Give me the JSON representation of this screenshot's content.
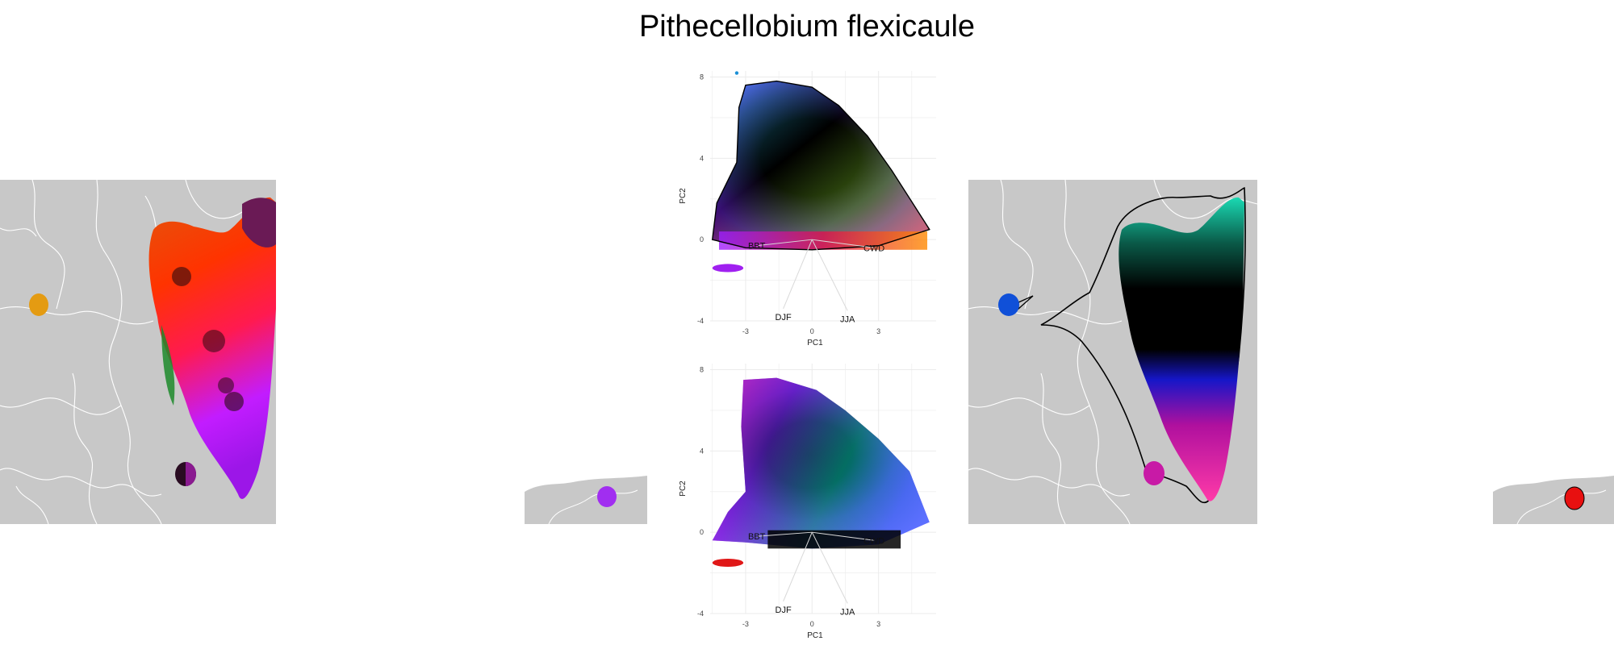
{
  "title": "Pithecellobium flexicaule",
  "colors": {
    "land": "#c8c8c8",
    "borders": "#ffffff",
    "grid": "#ebebeb",
    "outline": "#000000",
    "vector": "#d9d9d9"
  },
  "chart_data": [
    {
      "id": "pca-envelope",
      "type": "scatter",
      "title": "",
      "xlabel": "PC1",
      "ylabel": "PC2",
      "xlim": [
        -4.6,
        5.6
      ],
      "ylim": [
        -4,
        8.3
      ],
      "xticks": [
        -3,
        0,
        3
      ],
      "yticks": [
        -4,
        0,
        4,
        8
      ],
      "grid": true,
      "envelope": [
        [
          -3.4,
          3.8
        ],
        [
          -3.3,
          6.5
        ],
        [
          -3.0,
          7.6
        ],
        [
          -1.6,
          7.8
        ],
        [
          0,
          7.5
        ],
        [
          1.2,
          6.6
        ],
        [
          2.5,
          5.1
        ],
        [
          3.6,
          3.4
        ],
        [
          5.3,
          0.5
        ],
        [
          3.0,
          -0.3
        ],
        [
          0,
          -0.5
        ],
        [
          -3.0,
          -0.4
        ],
        [
          -4.5,
          0
        ],
        [
          -4.3,
          1.8
        ]
      ],
      "outlier_blob": {
        "x": -3.8,
        "y": -1.4,
        "rx": 0.7,
        "ry": 0.2
      },
      "outlier_point": {
        "x": -3.4,
        "y": 8.2
      },
      "vectors": [
        {
          "label": "BBT",
          "x": -2.5,
          "y": -0.3
        },
        {
          "label": "CWD",
          "x": 2.8,
          "y": -0.4
        },
        {
          "label": "DJF",
          "x": -1.3,
          "y": -3.4
        },
        {
          "label": "JJA",
          "x": 1.6,
          "y": -3.5
        }
      ]
    },
    {
      "id": "pca-occurrences",
      "type": "scatter",
      "title": "",
      "xlabel": "PC1",
      "ylabel": "PC2",
      "xlim": [
        -4.6,
        5.6
      ],
      "ylim": [
        -4,
        8.3
      ],
      "xticks": [
        -3,
        0,
        3
      ],
      "yticks": [
        -4,
        0,
        4,
        8
      ],
      "grid": true,
      "point_cloud": [
        [
          -3.0,
          2.0
        ],
        [
          -3.2,
          5.2
        ],
        [
          -3.1,
          7.5
        ],
        [
          -1.6,
          7.6
        ],
        [
          0.2,
          7.0
        ],
        [
          1.5,
          6.0
        ],
        [
          3.0,
          4.6
        ],
        [
          4.4,
          3.0
        ],
        [
          5.3,
          0.5
        ],
        [
          3.0,
          -0.6
        ],
        [
          0,
          -0.8
        ],
        [
          -3.0,
          -0.5
        ],
        [
          -4.5,
          -0.4
        ],
        [
          -3.8,
          1.0
        ]
      ],
      "outlier_blob": {
        "x": -3.8,
        "y": -1.5,
        "rx": 0.7,
        "ry": 0.2
      },
      "vectors": [
        {
          "label": "BBT",
          "x": -2.5,
          "y": -0.2
        },
        {
          "label": "CWD",
          "x": 2.8,
          "y": -0.4
        },
        {
          "label": "DJF",
          "x": -1.3,
          "y": -3.4
        },
        {
          "label": "JJA",
          "x": 1.6,
          "y": -3.5
        }
      ]
    }
  ]
}
